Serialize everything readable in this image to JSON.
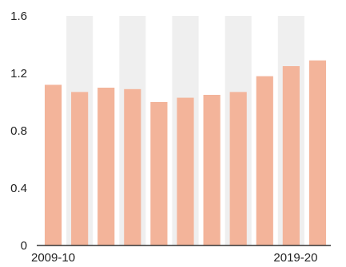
{
  "chart_data": {
    "type": "bar",
    "title": "",
    "xlabel": "",
    "ylabel": "",
    "categories": [
      "2009-10",
      "",
      "",
      "",
      "",
      "",
      "",
      "",
      "",
      "",
      "2019-20"
    ],
    "values": [
      1.12,
      1.07,
      1.1,
      1.09,
      1.0,
      1.03,
      1.05,
      1.07,
      1.18,
      1.25,
      1.29
    ],
    "ylim": [
      0,
      1.6
    ],
    "yticks": [
      0,
      0.4,
      0.8,
      1.2,
      1.6
    ],
    "ytick_labels": [
      "0",
      "0.4",
      "0.8",
      "1.2",
      "1.6"
    ],
    "x_tick_labels_shown": [
      "2009-10",
      "2019-20"
    ],
    "grid": "alternating vertical bands",
    "colors": {
      "bar": "#f3b49a",
      "band": "#efefef",
      "axis": "#333333",
      "text": "#222222"
    }
  }
}
